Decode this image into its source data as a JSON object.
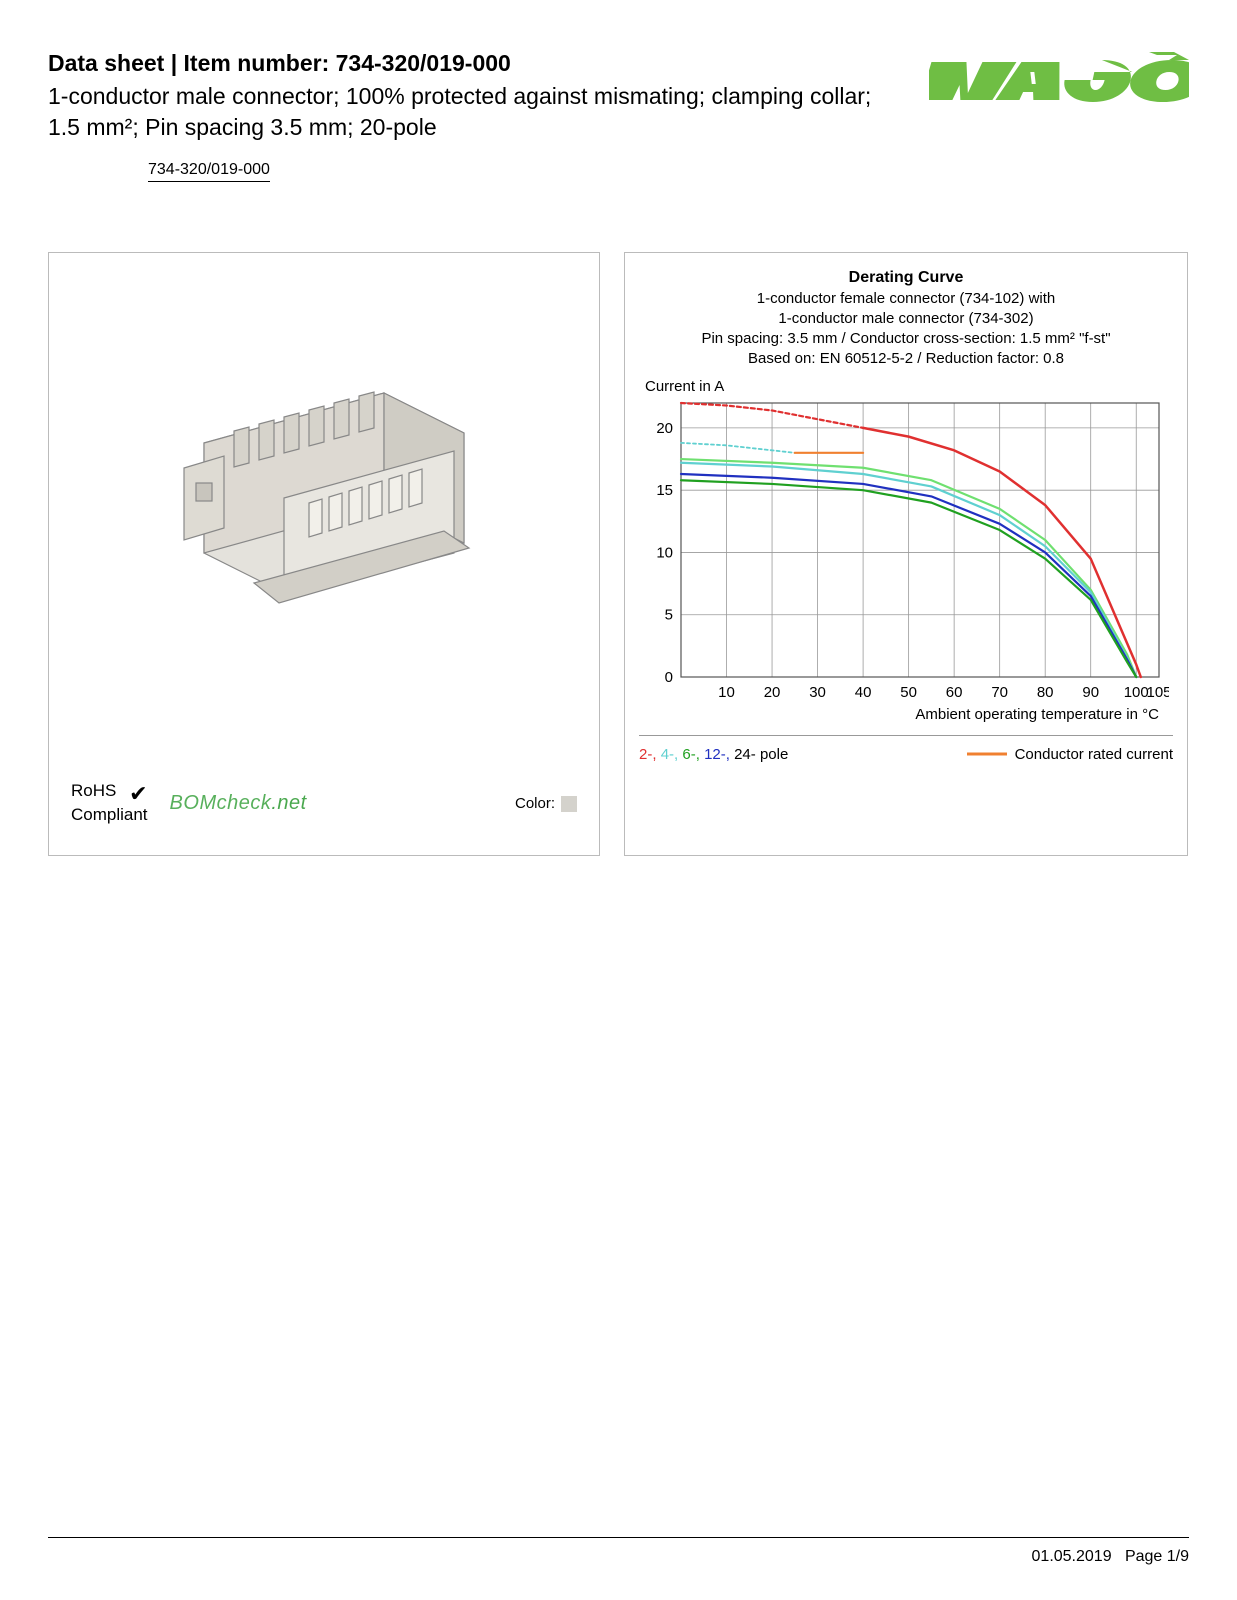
{
  "header": {
    "title": "Data sheet  |  Item number: 734-320/019-000",
    "description": "1-conductor male connector; 100% protected against mismating; clamping collar; 1.5 mm²; Pin spacing 3.5 mm; 20-pole",
    "part_link": "734-320/019-000",
    "logo_text": "WAGO",
    "logo_color": "#6fbe44"
  },
  "badges": {
    "rohs_line1": "RoHS",
    "rohs_line2": "Compliant",
    "check": "✔",
    "bomcheck_main": "BOMcheck",
    "bomcheck_suffix": ".net",
    "color_label": "Color:",
    "color_swatch": "#d4d2cc"
  },
  "chart": {
    "type": "line",
    "title": "Derating Curve",
    "subtitle1": "1-conductor female connector (734-102) with",
    "subtitle2": "1-conductor male connector (734-302)",
    "subtitle3": "Pin spacing: 3.5 mm / Conductor cross-section: 1.5 mm² \"f-st\"",
    "subtitle4": "Based on: EN 60512-5-2 / Reduction factor: 0.8",
    "ylabel": "Current in A",
    "xlabel": "Ambient operating temperature in °C",
    "xlim": [
      0,
      105
    ],
    "ylim": [
      0,
      22
    ],
    "xticks": [
      0,
      10,
      20,
      30,
      40,
      50,
      60,
      70,
      80,
      90,
      100,
      105
    ],
    "yticks": [
      0,
      5,
      10,
      15,
      20
    ],
    "grid_color": "#999999",
    "background_color": "#ffffff",
    "series": {
      "rated_dash": {
        "color": "#e03030",
        "dash": "4,3",
        "width": 2.2,
        "points": [
          [
            0,
            22
          ],
          [
            10,
            21.8
          ],
          [
            20,
            21.4
          ],
          [
            30,
            20.7
          ],
          [
            40,
            20.0
          ]
        ]
      },
      "rated_solid": {
        "color": "#e03030",
        "dash": null,
        "width": 2.5,
        "points": [
          [
            40,
            20.0
          ],
          [
            50,
            19.3
          ],
          [
            60,
            18.2
          ],
          [
            70,
            16.5
          ],
          [
            80,
            13.8
          ],
          [
            90,
            9.5
          ],
          [
            100,
            1.0
          ],
          [
            101,
            0
          ]
        ]
      },
      "cyan_dash": {
        "color": "#5fd0d0",
        "dash": "3,3",
        "width": 1.8,
        "points": [
          [
            0,
            18.8
          ],
          [
            10,
            18.6
          ],
          [
            20,
            18.2
          ],
          [
            25,
            18.0
          ]
        ]
      },
      "orange": {
        "color": "#f08030",
        "dash": null,
        "width": 2.2,
        "points": [
          [
            25,
            18.0
          ],
          [
            40,
            18.0
          ]
        ]
      },
      "cyan_solid": {
        "color": "#5fd0d0",
        "dash": null,
        "width": 2.2,
        "points": [
          [
            0,
            17.2
          ],
          [
            20,
            16.9
          ],
          [
            40,
            16.3
          ],
          [
            55,
            15.3
          ],
          [
            70,
            13.0
          ],
          [
            80,
            10.5
          ],
          [
            90,
            6.8
          ],
          [
            98,
            1.5
          ],
          [
            100,
            0
          ]
        ]
      },
      "lightgreen": {
        "color": "#6fe070",
        "dash": null,
        "width": 2.2,
        "points": [
          [
            0,
            17.5
          ],
          [
            20,
            17.2
          ],
          [
            40,
            16.8
          ],
          [
            55,
            15.8
          ],
          [
            70,
            13.5
          ],
          [
            80,
            11.0
          ],
          [
            90,
            7.0
          ],
          [
            98,
            1.8
          ],
          [
            100,
            0
          ]
        ]
      },
      "green": {
        "color": "#20a020",
        "dash": null,
        "width": 2.2,
        "points": [
          [
            0,
            15.8
          ],
          [
            20,
            15.5
          ],
          [
            40,
            15.0
          ],
          [
            55,
            14.0
          ],
          [
            70,
            11.8
          ],
          [
            80,
            9.5
          ],
          [
            90,
            6.2
          ],
          [
            98,
            1.2
          ],
          [
            100,
            0
          ]
        ]
      },
      "blue": {
        "color": "#2030c0",
        "dash": null,
        "width": 2.2,
        "points": [
          [
            0,
            16.3
          ],
          [
            20,
            16.0
          ],
          [
            40,
            15.5
          ],
          [
            55,
            14.5
          ],
          [
            70,
            12.3
          ],
          [
            80,
            10.0
          ],
          [
            90,
            6.5
          ],
          [
            98,
            1.4
          ],
          [
            100,
            0
          ]
        ]
      }
    },
    "legend_poles": [
      {
        "text": "2-,",
        "color": "#e03030"
      },
      {
        "text": "4-,",
        "color": "#5fd0d0"
      },
      {
        "text": "6-,",
        "color": "#20a020"
      },
      {
        "text": "12-,",
        "color": "#2030c0"
      },
      {
        "text": "24-",
        "color": "#000000"
      },
      {
        "text": " pole",
        "color": "#000000"
      }
    ],
    "legend_rated": "Conductor rated current",
    "legend_rated_color": "#f08030"
  },
  "footer": {
    "date": "01.05.2019",
    "page": "Page 1/9"
  }
}
